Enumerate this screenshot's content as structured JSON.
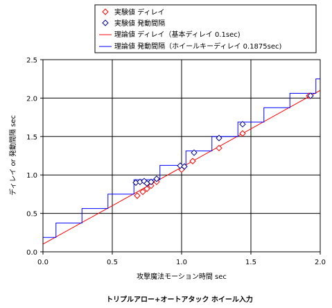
{
  "chart_data": {
    "type": "scatter",
    "title": "トリプルアロー+オートアタック ホイール入力",
    "xlabel": "攻撃魔法モーション時間 sec",
    "ylabel": "ディレイ or 発動間隔 sec",
    "xlim": [
      0,
      2.0
    ],
    "ylim": [
      0,
      2.5
    ],
    "xticks": [
      "0.0",
      "0.5",
      "1.0",
      "1.5",
      "2.0"
    ],
    "yticks": [
      "0.0",
      "0.5",
      "1.0",
      "1.5",
      "2.0",
      "2.5"
    ],
    "grid": true,
    "legend_position": "top",
    "series": [
      {
        "name": "実験値 ディレイ",
        "kind": "scatter",
        "marker": "diamond",
        "color": "#ff0000",
        "points": [
          [
            0.68,
            0.73
          ],
          [
            0.72,
            0.78
          ],
          [
            0.75,
            0.82
          ],
          [
            0.78,
            0.86
          ],
          [
            0.82,
            0.91
          ],
          [
            1.0,
            1.07
          ],
          [
            1.08,
            1.18
          ],
          [
            1.27,
            1.35
          ],
          [
            1.44,
            1.54
          ],
          [
            1.92,
            2.03
          ]
        ]
      },
      {
        "name": "実験値 発動間隔",
        "kind": "scatter",
        "marker": "diamond",
        "color": "#000080",
        "points": [
          [
            0.67,
            0.9
          ],
          [
            0.7,
            0.91
          ],
          [
            0.73,
            0.92
          ],
          [
            0.75,
            0.89
          ],
          [
            0.78,
            0.91
          ],
          [
            0.82,
            0.95
          ],
          [
            0.99,
            1.12
          ],
          [
            1.02,
            1.11
          ],
          [
            1.09,
            1.29
          ],
          [
            1.27,
            1.48
          ],
          [
            1.44,
            1.66
          ],
          [
            1.93,
            2.03
          ]
        ]
      },
      {
        "name": "理論値 ディレイ（基本ディレイ 0.1sec)",
        "kind": "line",
        "color": "#ff0000",
        "points": [
          [
            0,
            0.1
          ],
          [
            2.0,
            2.1
          ]
        ]
      },
      {
        "name": "理論値 発動間隔（ホイールキーディレイ 0.1875sec)",
        "kind": "step",
        "color": "#0000ff",
        "points": [
          [
            0,
            0.1875
          ],
          [
            0.09375,
            0.1875
          ],
          [
            0.09375,
            0.375
          ],
          [
            0.28125,
            0.375
          ],
          [
            0.28125,
            0.5625
          ],
          [
            0.46875,
            0.5625
          ],
          [
            0.46875,
            0.75
          ],
          [
            0.65625,
            0.75
          ],
          [
            0.65625,
            0.9375
          ],
          [
            0.84375,
            0.9375
          ],
          [
            0.84375,
            1.125
          ],
          [
            1.03125,
            1.125
          ],
          [
            1.03125,
            1.3125
          ],
          [
            1.21875,
            1.3125
          ],
          [
            1.21875,
            1.5
          ],
          [
            1.40625,
            1.5
          ],
          [
            1.40625,
            1.6875
          ],
          [
            1.59375,
            1.6875
          ],
          [
            1.59375,
            1.875
          ],
          [
            1.78125,
            1.875
          ],
          [
            1.78125,
            2.0625
          ],
          [
            1.96875,
            2.0625
          ],
          [
            1.96875,
            2.25
          ],
          [
            2.0,
            2.25
          ]
        ]
      }
    ]
  }
}
